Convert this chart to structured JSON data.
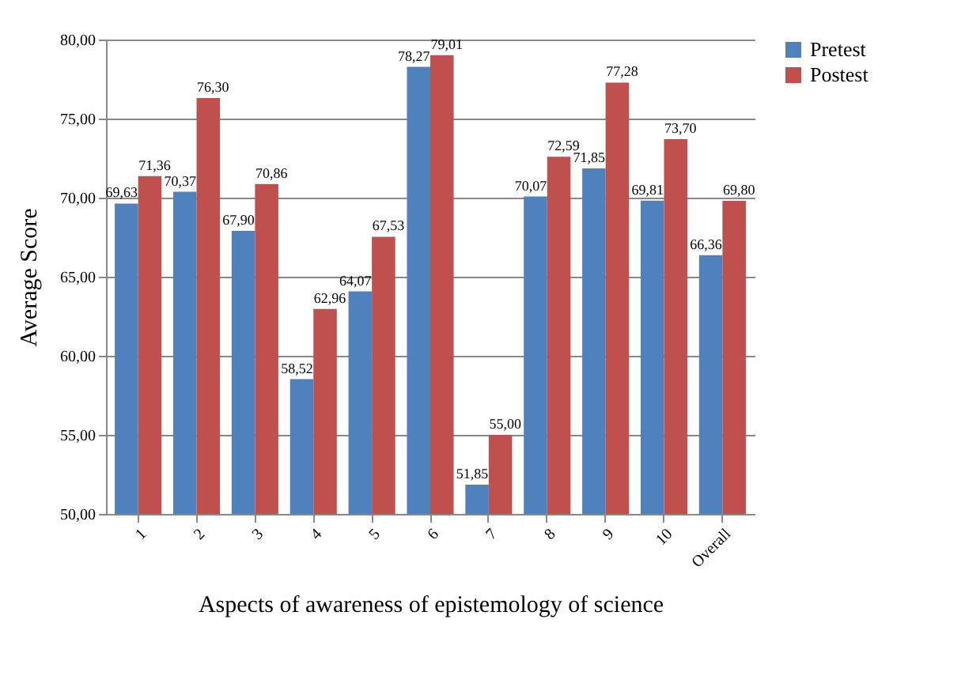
{
  "chart_data": {
    "type": "bar",
    "xlabel": "Aspects of awareness of epistemology of science",
    "ylabel": "Average Score",
    "categories": [
      "1",
      "2",
      "3",
      "4",
      "5",
      "6",
      "7",
      "8",
      "9",
      "10",
      "Overall"
    ],
    "series": [
      {
        "name": "Pretest",
        "color": "#4f81bd",
        "values": [
          69.63,
          70.37,
          67.9,
          58.52,
          64.07,
          78.27,
          51.85,
          70.07,
          71.85,
          69.81,
          66.36
        ],
        "value_labels": [
          "69,63",
          "70,37",
          "67,90",
          "58,52",
          "64,07",
          "78,27",
          "51,85",
          "70,07",
          "71,85",
          "69,81",
          "66,36"
        ]
      },
      {
        "name": "Postest",
        "color": "#c0504d",
        "values": [
          71.36,
          76.3,
          70.86,
          62.96,
          67.53,
          79.01,
          55.0,
          72.59,
          77.28,
          73.7,
          69.8
        ],
        "value_labels": [
          "71,36",
          "76,30",
          "70,86",
          "62,96",
          "67,53",
          "79,01",
          "55,00",
          "72,59",
          "77,28",
          "73,70",
          "69,80"
        ]
      }
    ],
    "ylim": [
      50,
      80
    ],
    "yticks": [
      {
        "value": 50,
        "label": "50,00"
      },
      {
        "value": 55,
        "label": "55,00"
      },
      {
        "value": 60,
        "label": "60,00"
      },
      {
        "value": 65,
        "label": "65,00"
      },
      {
        "value": 70,
        "label": "70,00"
      },
      {
        "value": 75,
        "label": "75,00"
      },
      {
        "value": 80,
        "label": "80,00"
      }
    ],
    "grid": "y",
    "legend": "right"
  }
}
